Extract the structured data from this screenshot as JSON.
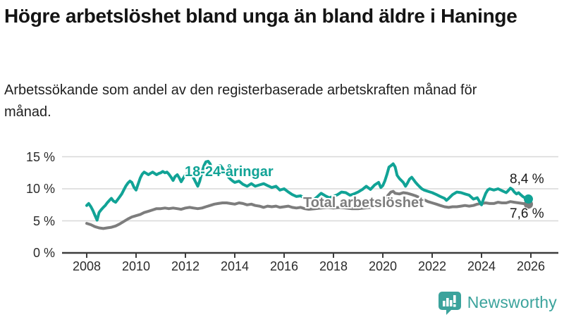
{
  "header": {
    "title": "Högre arbetslöshet bland unga än bland äldre i Haninge",
    "subtitle": "Arbetssökande som andel av den registerbaserade arbetskraften månad för månad."
  },
  "chart_data": {
    "type": "line",
    "unit": "%",
    "grid": true,
    "legend_position": "inline-labels-on-lines",
    "x_axis": {
      "tick_values": [
        2008,
        2010,
        2012,
        2014,
        2016,
        2018,
        2020,
        2022,
        2024,
        2026
      ],
      "tick_labels": [
        "2008",
        "2010",
        "2012",
        "2014",
        "2016",
        "2018",
        "2020",
        "2022",
        "2024",
        "2026"
      ],
      "range": [
        2008,
        2025.9
      ]
    },
    "y_axis": {
      "tick_values": [
        0,
        5,
        10,
        15
      ],
      "tick_labels": [
        "0 %",
        "5 %",
        "10 %",
        "15 %"
      ],
      "range": [
        0,
        16.5
      ]
    },
    "series": [
      {
        "name": "18-24-åringar",
        "color": "#11A396",
        "end_value": 8.4,
        "end_label": "8,4 %",
        "points": [
          [
            2008.0,
            7.4
          ],
          [
            2008.08,
            7.7
          ],
          [
            2008.17,
            7.2
          ],
          [
            2008.25,
            6.6
          ],
          [
            2008.33,
            5.9
          ],
          [
            2008.42,
            5.1
          ],
          [
            2008.5,
            6.3
          ],
          [
            2008.58,
            6.7
          ],
          [
            2008.67,
            7.1
          ],
          [
            2008.75,
            7.4
          ],
          [
            2008.83,
            7.8
          ],
          [
            2008.92,
            8.2
          ],
          [
            2009.0,
            8.5
          ],
          [
            2009.08,
            8.1
          ],
          [
            2009.17,
            7.9
          ],
          [
            2009.25,
            8.3
          ],
          [
            2009.33,
            8.7
          ],
          [
            2009.42,
            9.2
          ],
          [
            2009.5,
            9.8
          ],
          [
            2009.58,
            10.4
          ],
          [
            2009.67,
            10.9
          ],
          [
            2009.75,
            11.2
          ],
          [
            2009.83,
            11.0
          ],
          [
            2009.92,
            10.2
          ],
          [
            2010.0,
            9.8
          ],
          [
            2010.08,
            10.7
          ],
          [
            2010.17,
            11.7
          ],
          [
            2010.25,
            12.3
          ],
          [
            2010.33,
            12.6
          ],
          [
            2010.42,
            12.4
          ],
          [
            2010.5,
            12.2
          ],
          [
            2010.58,
            12.4
          ],
          [
            2010.67,
            12.6
          ],
          [
            2010.75,
            12.4
          ],
          [
            2010.83,
            12.2
          ],
          [
            2010.92,
            12.4
          ],
          [
            2011.0,
            12.5
          ],
          [
            2011.08,
            12.7
          ],
          [
            2011.17,
            12.5
          ],
          [
            2011.25,
            12.6
          ],
          [
            2011.33,
            12.3
          ],
          [
            2011.42,
            11.8
          ],
          [
            2011.5,
            11.3
          ],
          [
            2011.58,
            11.9
          ],
          [
            2011.67,
            12.2
          ],
          [
            2011.75,
            11.7
          ],
          [
            2011.83,
            11.1
          ],
          [
            2011.92,
            11.7
          ],
          [
            2012.0,
            12.2
          ],
          [
            2012.08,
            12.4
          ],
          [
            2012.17,
            12.5
          ],
          [
            2012.25,
            12.2
          ],
          [
            2012.33,
            11.7
          ],
          [
            2012.42,
            11.0
          ],
          [
            2012.5,
            10.4
          ],
          [
            2012.58,
            11.2
          ],
          [
            2012.67,
            12.6
          ],
          [
            2012.75,
            13.6
          ],
          [
            2012.83,
            14.2
          ],
          [
            2012.92,
            14.3
          ],
          [
            2013.0,
            13.9
          ],
          [
            2013.08,
            13.1
          ],
          [
            2013.17,
            12.7
          ],
          [
            2013.25,
            13.1
          ],
          [
            2013.33,
            13.5
          ],
          [
            2013.42,
            13.6
          ],
          [
            2013.5,
            13.2
          ],
          [
            2013.58,
            12.6
          ],
          [
            2013.67,
            12.1
          ],
          [
            2013.75,
            11.8
          ],
          [
            2013.83,
            11.5
          ],
          [
            2013.92,
            11.2
          ],
          [
            2014.0,
            11.0
          ],
          [
            2014.17,
            11.2
          ],
          [
            2014.33,
            10.7
          ],
          [
            2014.5,
            10.4
          ],
          [
            2014.67,
            10.8
          ],
          [
            2014.83,
            10.4
          ],
          [
            2015.0,
            10.6
          ],
          [
            2015.17,
            10.8
          ],
          [
            2015.33,
            10.5
          ],
          [
            2015.5,
            10.2
          ],
          [
            2015.67,
            10.4
          ],
          [
            2015.83,
            9.8
          ],
          [
            2016.0,
            10.0
          ],
          [
            2016.17,
            9.5
          ],
          [
            2016.33,
            9.1
          ],
          [
            2016.5,
            8.8
          ],
          [
            2016.67,
            8.9
          ],
          [
            2016.83,
            8.5
          ],
          [
            2017.0,
            8.3
          ],
          [
            2017.17,
            8.2
          ],
          [
            2017.33,
            8.7
          ],
          [
            2017.5,
            9.3
          ],
          [
            2017.67,
            8.9
          ],
          [
            2017.83,
            8.6
          ],
          [
            2018.0,
            8.8
          ],
          [
            2018.17,
            9.1
          ],
          [
            2018.33,
            9.5
          ],
          [
            2018.5,
            9.4
          ],
          [
            2018.67,
            9.0
          ],
          [
            2018.83,
            9.2
          ],
          [
            2019.0,
            9.5
          ],
          [
            2019.17,
            9.9
          ],
          [
            2019.33,
            10.4
          ],
          [
            2019.5,
            9.9
          ],
          [
            2019.67,
            10.6
          ],
          [
            2019.83,
            11.0
          ],
          [
            2019.92,
            10.2
          ],
          [
            2020.0,
            10.5
          ],
          [
            2020.08,
            11.2
          ],
          [
            2020.17,
            12.3
          ],
          [
            2020.25,
            13.4
          ],
          [
            2020.33,
            13.6
          ],
          [
            2020.42,
            13.9
          ],
          [
            2020.5,
            13.4
          ],
          [
            2020.58,
            12.1
          ],
          [
            2020.67,
            11.6
          ],
          [
            2020.75,
            11.3
          ],
          [
            2020.83,
            11.0
          ],
          [
            2020.92,
            10.4
          ],
          [
            2021.0,
            10.9
          ],
          [
            2021.08,
            11.5
          ],
          [
            2021.17,
            11.8
          ],
          [
            2021.25,
            11.4
          ],
          [
            2021.33,
            11.0
          ],
          [
            2021.42,
            10.6
          ],
          [
            2021.5,
            10.3
          ],
          [
            2021.58,
            10.0
          ],
          [
            2021.67,
            9.8
          ],
          [
            2021.83,
            9.6
          ],
          [
            2022.0,
            9.4
          ],
          [
            2022.17,
            9.1
          ],
          [
            2022.33,
            8.8
          ],
          [
            2022.5,
            8.5
          ],
          [
            2022.58,
            8.2
          ],
          [
            2022.67,
            8.5
          ],
          [
            2022.83,
            9.1
          ],
          [
            2023.0,
            9.5
          ],
          [
            2023.17,
            9.4
          ],
          [
            2023.33,
            9.2
          ],
          [
            2023.5,
            9.0
          ],
          [
            2023.67,
            8.4
          ],
          [
            2023.83,
            8.6
          ],
          [
            2023.92,
            8.0
          ],
          [
            2024.0,
            7.5
          ],
          [
            2024.08,
            8.4
          ],
          [
            2024.17,
            9.3
          ],
          [
            2024.25,
            9.8
          ],
          [
            2024.33,
            10.0
          ],
          [
            2024.5,
            9.8
          ],
          [
            2024.67,
            10.0
          ],
          [
            2024.83,
            9.7
          ],
          [
            2025.0,
            9.4
          ],
          [
            2025.08,
            9.7
          ],
          [
            2025.17,
            10.1
          ],
          [
            2025.25,
            9.9
          ],
          [
            2025.33,
            9.5
          ],
          [
            2025.42,
            9.2
          ],
          [
            2025.5,
            9.4
          ],
          [
            2025.58,
            9.1
          ],
          [
            2025.67,
            8.8
          ],
          [
            2025.75,
            8.6
          ],
          [
            2025.9,
            8.4
          ]
        ]
      },
      {
        "name": "Total arbetslöshet",
        "color": "#7D7D7D",
        "end_value": 7.6,
        "end_label": "7,6 %",
        "points": [
          [
            2008.0,
            4.6
          ],
          [
            2008.17,
            4.4
          ],
          [
            2008.33,
            4.1
          ],
          [
            2008.5,
            3.9
          ],
          [
            2008.67,
            3.8
          ],
          [
            2008.83,
            3.9
          ],
          [
            2009.0,
            4.0
          ],
          [
            2009.17,
            4.2
          ],
          [
            2009.33,
            4.5
          ],
          [
            2009.5,
            4.9
          ],
          [
            2009.67,
            5.3
          ],
          [
            2009.83,
            5.6
          ],
          [
            2010.0,
            5.8
          ],
          [
            2010.17,
            6.0
          ],
          [
            2010.33,
            6.3
          ],
          [
            2010.5,
            6.5
          ],
          [
            2010.67,
            6.7
          ],
          [
            2010.83,
            6.9
          ],
          [
            2011.0,
            6.9
          ],
          [
            2011.17,
            7.0
          ],
          [
            2011.33,
            6.9
          ],
          [
            2011.5,
            7.0
          ],
          [
            2011.67,
            6.9
          ],
          [
            2011.83,
            6.8
          ],
          [
            2012.0,
            7.0
          ],
          [
            2012.17,
            7.1
          ],
          [
            2012.33,
            7.0
          ],
          [
            2012.5,
            6.9
          ],
          [
            2012.67,
            7.0
          ],
          [
            2012.83,
            7.2
          ],
          [
            2013.0,
            7.4
          ],
          [
            2013.17,
            7.6
          ],
          [
            2013.33,
            7.7
          ],
          [
            2013.5,
            7.8
          ],
          [
            2013.67,
            7.8
          ],
          [
            2013.83,
            7.7
          ],
          [
            2014.0,
            7.6
          ],
          [
            2014.17,
            7.8
          ],
          [
            2014.33,
            7.7
          ],
          [
            2014.5,
            7.5
          ],
          [
            2014.67,
            7.6
          ],
          [
            2014.83,
            7.4
          ],
          [
            2015.0,
            7.3
          ],
          [
            2015.17,
            7.1
          ],
          [
            2015.33,
            7.3
          ],
          [
            2015.5,
            7.2
          ],
          [
            2015.67,
            7.3
          ],
          [
            2015.83,
            7.1
          ],
          [
            2016.0,
            7.2
          ],
          [
            2016.17,
            7.3
          ],
          [
            2016.33,
            7.1
          ],
          [
            2016.5,
            7.0
          ],
          [
            2016.67,
            7.1
          ],
          [
            2016.83,
            6.9
          ],
          [
            2017.0,
            6.8
          ],
          [
            2017.25,
            6.9
          ],
          [
            2017.5,
            7.0
          ],
          [
            2017.75,
            7.1
          ],
          [
            2018.0,
            7.0
          ],
          [
            2018.25,
            7.1
          ],
          [
            2018.5,
            7.0
          ],
          [
            2018.75,
            6.9
          ],
          [
            2019.0,
            6.9
          ],
          [
            2019.25,
            7.0
          ],
          [
            2019.5,
            7.1
          ],
          [
            2019.75,
            7.4
          ],
          [
            2020.0,
            7.9
          ],
          [
            2020.17,
            8.8
          ],
          [
            2020.33,
            9.5
          ],
          [
            2020.42,
            9.6
          ],
          [
            2020.5,
            9.3
          ],
          [
            2020.67,
            9.2
          ],
          [
            2020.83,
            9.4
          ],
          [
            2021.0,
            9.3
          ],
          [
            2021.17,
            9.1
          ],
          [
            2021.33,
            8.9
          ],
          [
            2021.5,
            8.6
          ],
          [
            2021.67,
            8.3
          ],
          [
            2021.83,
            8.0
          ],
          [
            2022.0,
            7.8
          ],
          [
            2022.17,
            7.6
          ],
          [
            2022.33,
            7.4
          ],
          [
            2022.5,
            7.2
          ],
          [
            2022.67,
            7.1
          ],
          [
            2022.83,
            7.2
          ],
          [
            2023.0,
            7.2
          ],
          [
            2023.17,
            7.3
          ],
          [
            2023.33,
            7.4
          ],
          [
            2023.5,
            7.3
          ],
          [
            2023.67,
            7.4
          ],
          [
            2023.83,
            7.6
          ],
          [
            2024.0,
            7.7
          ],
          [
            2024.17,
            7.8
          ],
          [
            2024.33,
            7.7
          ],
          [
            2024.5,
            7.7
          ],
          [
            2024.67,
            7.9
          ],
          [
            2024.83,
            7.8
          ],
          [
            2025.0,
            7.8
          ],
          [
            2025.17,
            8.0
          ],
          [
            2025.33,
            7.9
          ],
          [
            2025.5,
            7.8
          ],
          [
            2025.67,
            7.7
          ],
          [
            2025.9,
            7.6
          ]
        ]
      }
    ]
  },
  "branding": {
    "name": "Newsworthy",
    "logo_icon": "bar-chart-speech-bubble-icon",
    "logo_color": "#3BA39C"
  }
}
